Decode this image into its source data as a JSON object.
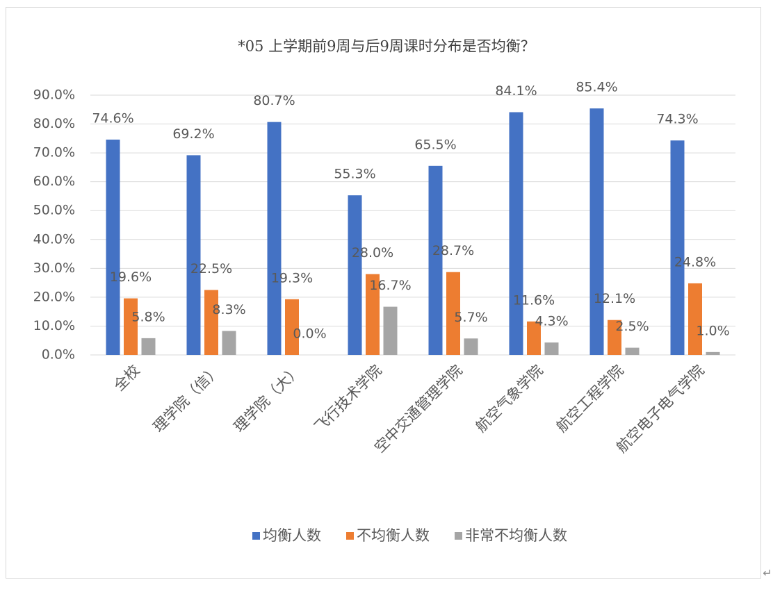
{
  "chart_data": {
    "type": "bar",
    "title": "*05 上学期前9周与后9周课时分布是否均衡？",
    "categories": [
      "全校",
      "理学院（信）",
      "理学院（大）",
      "飞行技术学院",
      "空中交通管理学院",
      "航空气象学院",
      "航空工程学院",
      "航空电子电气学院"
    ],
    "series": [
      {
        "name": "均衡人数",
        "color": "#4472c4",
        "values": [
          74.6,
          69.2,
          80.7,
          55.3,
          65.5,
          84.1,
          85.4,
          74.3
        ],
        "value_labels": [
          "74.6%",
          "69.2%",
          "80.7%",
          "55.3%",
          "65.5%",
          "84.1%",
          "85.4%",
          "74.3%"
        ]
      },
      {
        "name": "不均衡人数",
        "color": "#ed7d31",
        "values": [
          19.6,
          22.5,
          19.3,
          28.0,
          28.7,
          11.6,
          12.1,
          24.8
        ],
        "value_labels": [
          "19.6%",
          "22.5%",
          "19.3%",
          "28.0%",
          "28.7%",
          "11.6%",
          "12.1%",
          "24.8%"
        ]
      },
      {
        "name": "非常不均衡人数",
        "color": "#a5a5a5",
        "values": [
          5.8,
          8.3,
          0.0,
          16.7,
          5.7,
          4.3,
          2.5,
          1.0
        ],
        "value_labels": [
          "5.8%",
          "8.3%",
          "0.0%",
          "16.7%",
          "5.7%",
          "4.3%",
          "2.5%",
          "1.0%"
        ]
      }
    ],
    "ylim": [
      0,
      90
    ],
    "yticks": [
      {
        "value": 0,
        "label": "0.0%"
      },
      {
        "value": 10,
        "label": "10.0%"
      },
      {
        "value": 20,
        "label": "20.0%"
      },
      {
        "value": 30,
        "label": "30.0%"
      },
      {
        "value": 40,
        "label": "40.0%"
      },
      {
        "value": 50,
        "label": "50.0%"
      },
      {
        "value": 60,
        "label": "60.0%"
      },
      {
        "value": 70,
        "label": "70.0%"
      },
      {
        "value": 80,
        "label": "80.0%"
      },
      {
        "value": 90,
        "label": "90.0%"
      }
    ],
    "grid": true,
    "legend": "bottom"
  },
  "paragraph_mark": "↵"
}
